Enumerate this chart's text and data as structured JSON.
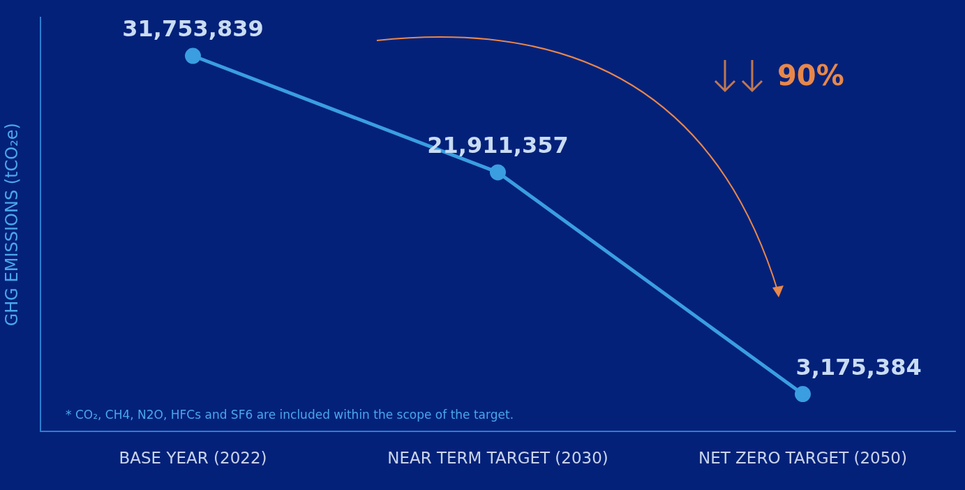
{
  "chart_data": {
    "type": "line",
    "categories": [
      "BASE YEAR (2022)",
      "NEAR TERM TARGET (2030)",
      "NET ZERO TARGET (2050)"
    ],
    "ylabel": "GHG EMISSIONS (tCO₂e)",
    "series": [
      {
        "color": "#3a9ee0",
        "values": [
          31753839,
          21911357,
          3175384
        ],
        "value_labels": [
          "31,753,839",
          "21,911,357",
          "3,175,384"
        ]
      }
    ],
    "marker": "circle",
    "grid": false,
    "legend": false,
    "tick_labels": "x",
    "annotations": [
      "90%",
      "* CO₂, CH4, N2O, HFCs and SF6 are included within the scope of the target."
    ]
  }
}
